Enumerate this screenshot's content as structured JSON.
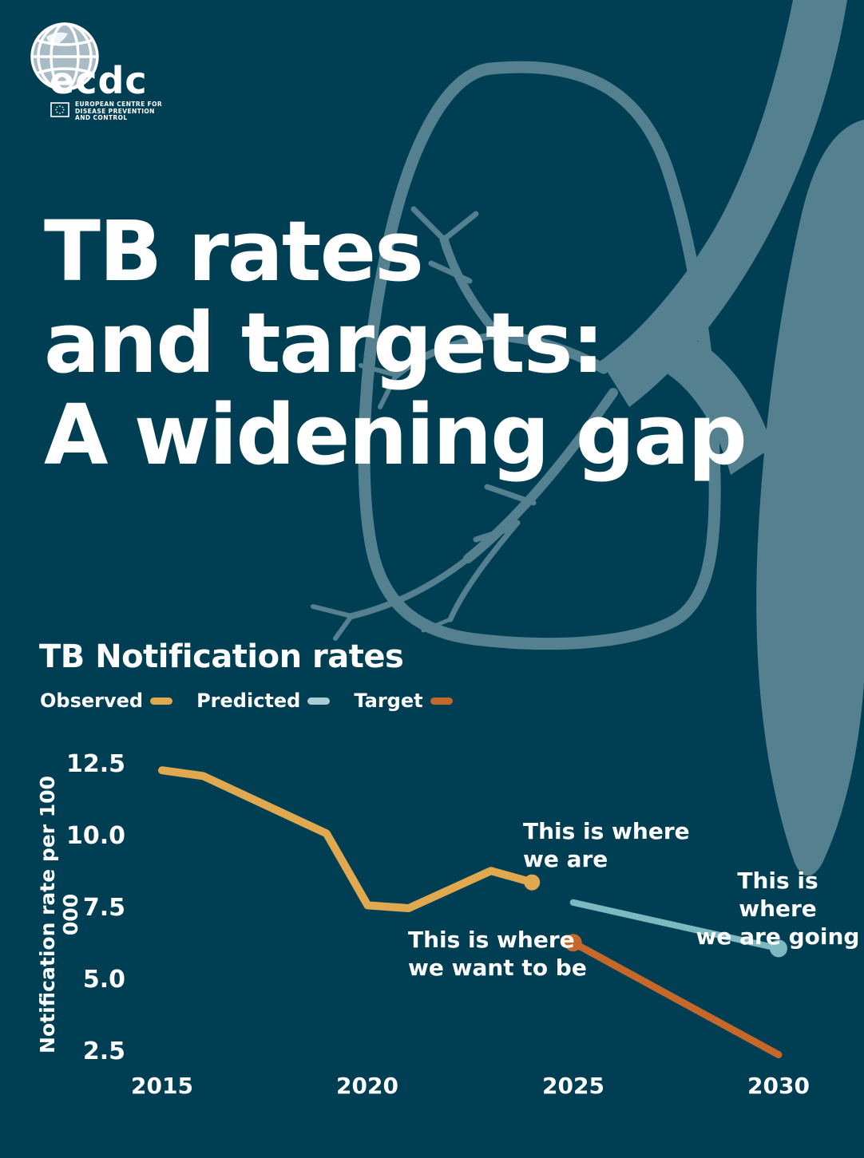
{
  "logo": {
    "brand": "ecdc",
    "caption_lines": [
      "EUROPEAN CENTRE FOR",
      "DISEASE PREVENTION",
      "AND CONTROL"
    ]
  },
  "title": {
    "lines": [
      "TB rates",
      "and targets:",
      "A widening gap"
    ]
  },
  "chart": {
    "heading": "TB Notification rates",
    "legend": [
      {
        "label": "Observed",
        "color": "#E0A94F"
      },
      {
        "label": "Predicted",
        "color": "#A6CED4"
      },
      {
        "label": "Target",
        "color": "#C6682A"
      }
    ]
  },
  "chart_data": {
    "type": "line",
    "title": "TB Notification rates",
    "xlabel": "",
    "ylabel": "Notification rate per 100 000",
    "xticks": [
      2015,
      2020,
      2025,
      2030
    ],
    "xtick_labels": [
      "2015",
      "2020",
      "2025",
      "2030"
    ],
    "yticks": [
      12.5,
      10.0,
      7.5,
      5.0,
      2.5
    ],
    "ytick_labels": [
      "12.5",
      "10.0",
      "7.5",
      "5.0",
      "2.5"
    ],
    "xlim": [
      2014.1,
      2031
    ],
    "ylim": [
      1.8,
      13.2
    ],
    "grid": false,
    "legend_position": "top-left",
    "series": [
      {
        "name": "Observed",
        "color": "#E0A94F",
        "width": 10,
        "start_dot": false,
        "end_dot": true,
        "dot_radius": 10,
        "points": [
          [
            2015,
            12.3
          ],
          [
            2016,
            12.1
          ],
          [
            2019,
            10.1
          ],
          [
            2020,
            7.6
          ],
          [
            2021,
            7.5
          ],
          [
            2023,
            8.8
          ],
          [
            2024,
            8.4
          ]
        ]
      },
      {
        "name": "Predicted",
        "color": "#7EB9C1",
        "width": 8,
        "start_dot": false,
        "end_dot": true,
        "dot_radius": 11,
        "points": [
          [
            2025,
            7.7
          ],
          [
            2030,
            6.1
          ]
        ]
      },
      {
        "name": "Target",
        "color": "#C6682A",
        "width": 9,
        "start_dot": true,
        "end_dot": false,
        "dot_radius": 11,
        "points": [
          [
            2025,
            6.3
          ],
          [
            2030,
            2.4
          ]
        ]
      }
    ],
    "annotations": [
      {
        "line1": "This is where",
        "line2": "we are"
      },
      {
        "line1": "This is where",
        "line2": "we want to be"
      },
      {
        "line1": "This is where",
        "line2": "we are going"
      }
    ]
  },
  "colors": {
    "background": "#003F53",
    "artwork": "#54808F",
    "text": "#FFFFFF"
  }
}
